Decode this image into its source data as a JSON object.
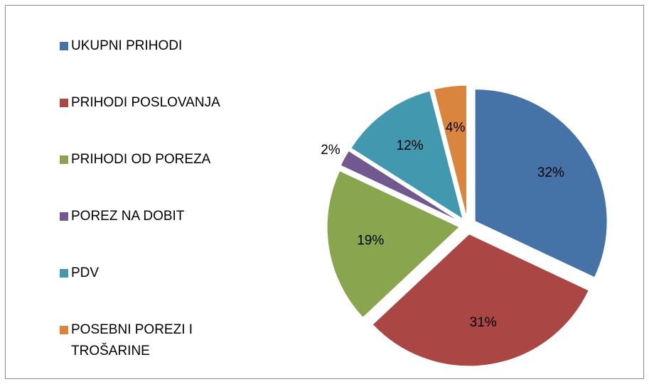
{
  "chart_data": {
    "type": "pie",
    "categories": [
      "UKUPNI PRIHODI",
      "PRIHODI POSLOVANJA",
      "PRIHODI OD POREZA",
      "POREZ NA DOBIT",
      "PDV",
      "POSEBNI POREZI I TROŠARINE"
    ],
    "values": [
      32,
      31,
      19,
      2,
      12,
      4
    ],
    "value_labels": [
      "32%",
      "31%",
      "19%",
      "2%",
      "12%",
      "4%"
    ],
    "colors": [
      "#4572a7",
      "#aa4643",
      "#89a54e",
      "#71588f",
      "#4198af",
      "#db843d"
    ],
    "legend": "left"
  }
}
